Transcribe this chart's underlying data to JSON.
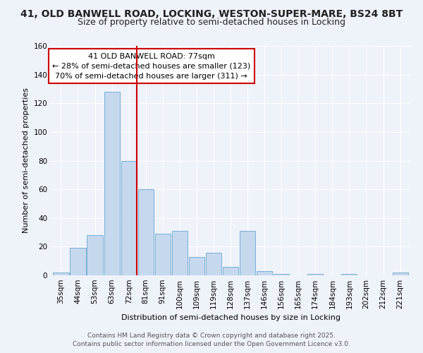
{
  "title": "41, OLD BANWELL ROAD, LOCKING, WESTON-SUPER-MARE, BS24 8BT",
  "subtitle": "Size of property relative to semi-detached houses in Locking",
  "xlabel": "Distribution of semi-detached houses by size in Locking",
  "ylabel": "Number of semi-detached properties",
  "bar_labels": [
    "35sqm",
    "44sqm",
    "53sqm",
    "63sqm",
    "72sqm",
    "81sqm",
    "91sqm",
    "100sqm",
    "109sqm",
    "119sqm",
    "128sqm",
    "137sqm",
    "146sqm",
    "156sqm",
    "165sqm",
    "174sqm",
    "184sqm",
    "193sqm",
    "202sqm",
    "212sqm",
    "221sqm"
  ],
  "bar_heights": [
    2,
    19,
    28,
    128,
    80,
    60,
    29,
    31,
    13,
    16,
    6,
    31,
    3,
    1,
    0,
    1,
    0,
    1,
    0,
    0,
    2
  ],
  "bar_color": "#c5d8ee",
  "bar_edge_color": "#7aafd4",
  "background_color": "#eef2f9",
  "grid_color": "#ffffff",
  "vline_color": "#cc0000",
  "vline_x_index": 4,
  "annotation_title": "41 OLD BANWELL ROAD: 77sqm",
  "annotation_line1": "← 28% of semi-detached houses are smaller (123)",
  "annotation_line2": "70% of semi-detached houses are larger (311) →",
  "annotation_box_color": "white",
  "annotation_box_edge_color": "#cc0000",
  "ylim": [
    0,
    160
  ],
  "yticks": [
    0,
    20,
    40,
    60,
    80,
    100,
    120,
    140,
    160
  ],
  "footer1": "Contains HM Land Registry data © Crown copyright and database right 2025.",
  "footer2": "Contains public sector information licensed under the Open Government Licence v3.0.",
  "title_fontsize": 10,
  "subtitle_fontsize": 9,
  "axis_label_fontsize": 8,
  "tick_fontsize": 7.5,
  "annotation_fontsize": 8,
  "footer_fontsize": 6.5
}
